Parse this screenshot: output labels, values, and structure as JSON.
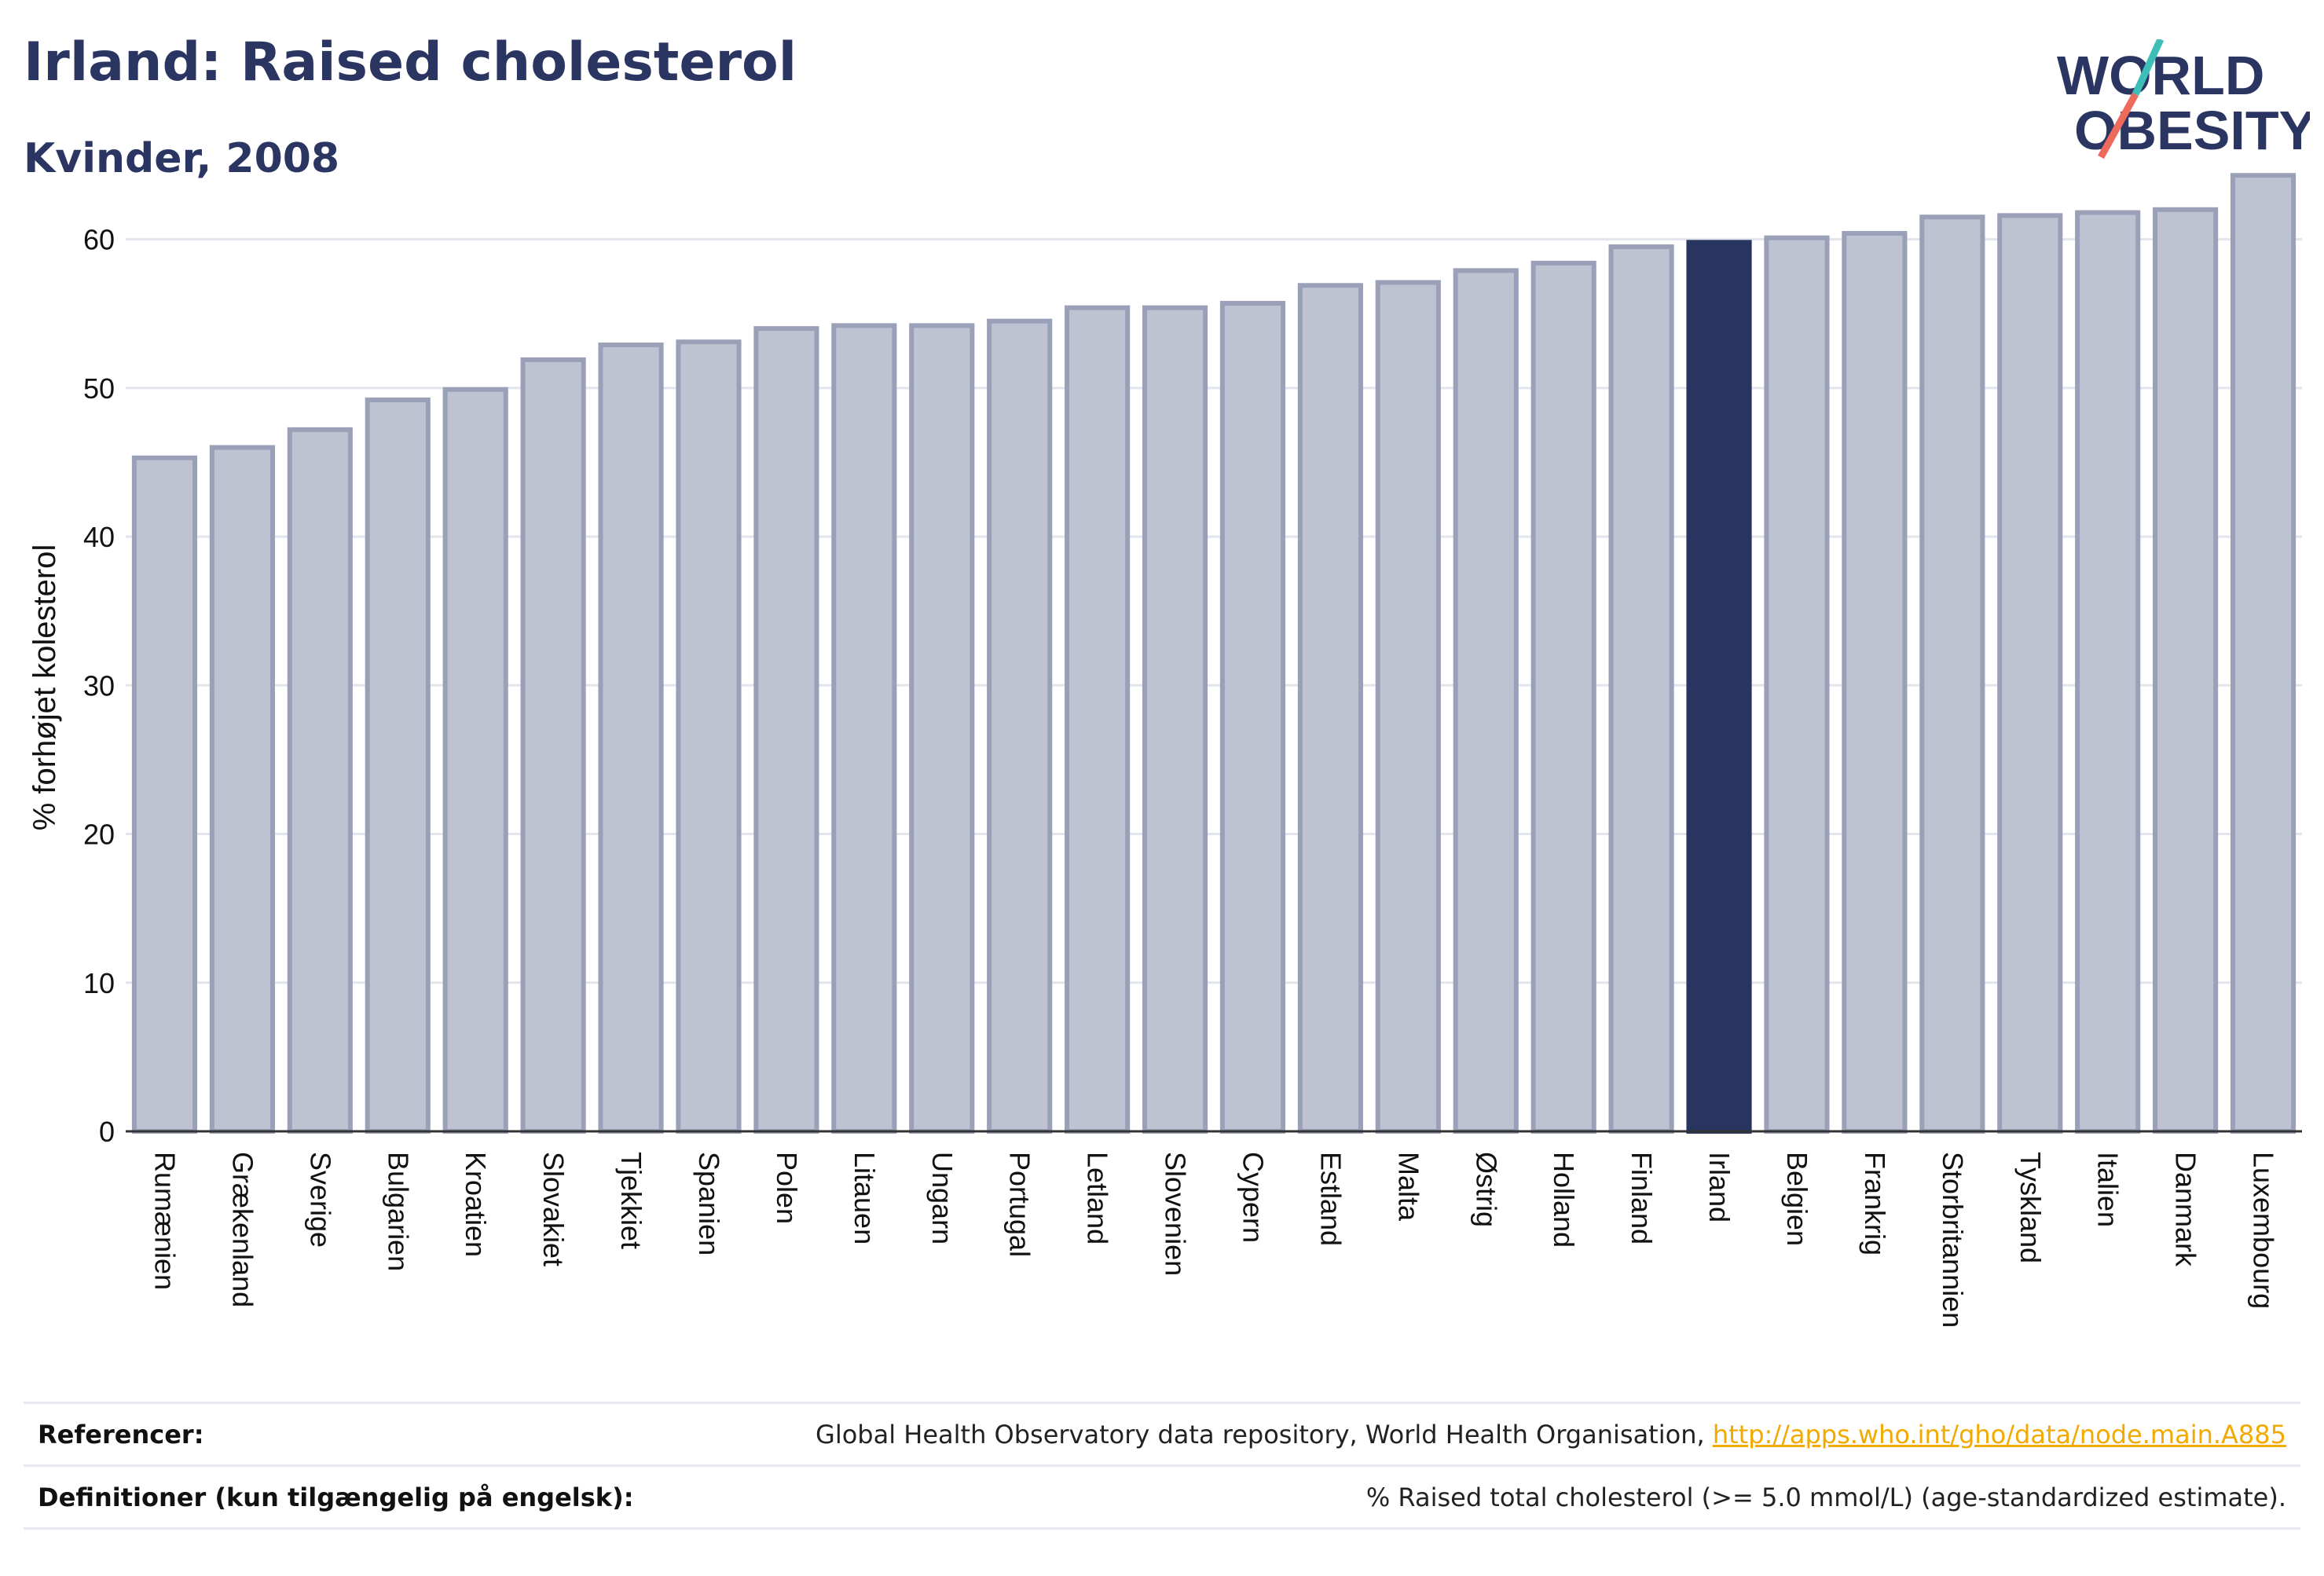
{
  "header": {
    "title": "Irland: Raised cholesterol",
    "subtitle": "Kvinder, 2008"
  },
  "logo": {
    "line1": "WORLD",
    "line2": "OBESITY"
  },
  "colors": {
    "brand": "#2b3562",
    "bar": "#bfc3d1",
    "bar_border": "#9aa0b8",
    "highlight": "#283560",
    "link": "#f2a900",
    "logo_teal": "#3dbfb8",
    "logo_coral": "#ee6a5a"
  },
  "chart_data": {
    "type": "bar",
    "title": "Irland: Raised cholesterol",
    "subtitle": "Kvinder, 2008",
    "ylabel": "% forhøjet kolesterol",
    "xlabel": "",
    "ylim": [
      0,
      65
    ],
    "yticks": [
      0,
      10,
      20,
      30,
      40,
      50,
      60
    ],
    "grid": true,
    "highlight": "Irland",
    "categories": [
      "Rumænien",
      "Grækenland",
      "Sverige",
      "Bulgarien",
      "Kroatien",
      "Slovakiet",
      "Tjekkiet",
      "Spanien",
      "Polen",
      "Litauen",
      "Ungarn",
      "Portugal",
      "Letland",
      "Slovenien",
      "Cypern",
      "Estland",
      "Malta",
      "Østrig",
      "Holland",
      "Finland",
      "Irland",
      "Belgien",
      "Frankrig",
      "Storbritannien",
      "Tyskland",
      "Italien",
      "Danmark",
      "Luxembourg"
    ],
    "values": [
      45.3,
      46.0,
      47.2,
      49.2,
      49.9,
      51.9,
      52.9,
      53.1,
      54.0,
      54.2,
      54.2,
      54.5,
      55.4,
      55.4,
      55.7,
      56.9,
      57.1,
      57.9,
      58.4,
      59.5,
      59.8,
      60.1,
      60.4,
      61.5,
      61.6,
      61.8,
      62.0,
      64.3
    ]
  },
  "footer": {
    "references_label": "Referencer:",
    "references_text": "Global Health Observatory data repository, World Health Organisation, ",
    "references_link": "http://apps.who.int/gho/data/node.main.A885",
    "definitions_label": "Definitioner (kun tilgængelig på engelsk):",
    "definitions_text": "% Raised total cholesterol (>= 5.0 mmol/L) (age-standardized estimate)."
  }
}
